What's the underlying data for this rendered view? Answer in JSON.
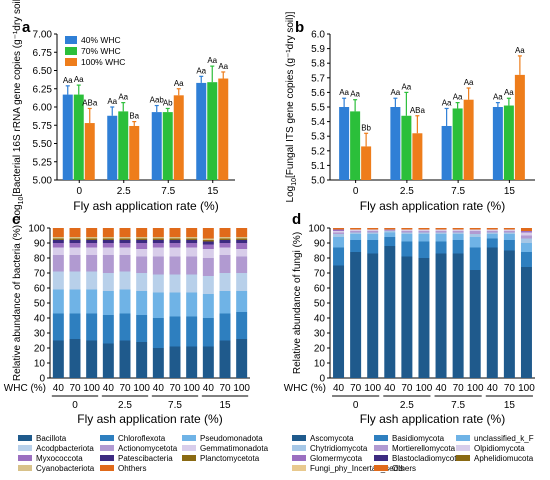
{
  "chart_data": [
    {
      "panel": "a",
      "type": "bar",
      "categories": [
        "0",
        "2.5",
        "7.5",
        "15"
      ],
      "series": [
        {
          "name": "40% WHC",
          "values": [
            6.17,
            5.88,
            5.93,
            6.33
          ],
          "errors": [
            0.12,
            0.12,
            0.09,
            0.09
          ],
          "labels": [
            "Aa",
            "Aa",
            "Aab",
            "Aa"
          ]
        },
        {
          "name": "70% WHC",
          "values": [
            6.17,
            5.94,
            5.93,
            6.34
          ],
          "errors": [
            0.13,
            0.12,
            0.05,
            0.22
          ],
          "labels": [
            "Aa",
            "Aa",
            "Ab",
            "Aa"
          ]
        },
        {
          "name": "100% WHC",
          "values": [
            5.78,
            5.74,
            6.16,
            6.39
          ],
          "errors": [
            0.2,
            0.06,
            0.09,
            0.09
          ],
          "labels": [
            "ABa",
            "Ba",
            "Aa",
            "Aa"
          ]
        }
      ],
      "xlabel": "Fly ash application rate (%)",
      "ylabel": "Log10[Bacterial 16S rRNA gene copies (g⁻¹dry soil)]",
      "ylim": [
        5.0,
        7.0
      ],
      "yticks": [
        "5.00",
        "5.25",
        "5.50",
        "5.75",
        "6.00",
        "6.25",
        "6.50",
        "6.75",
        "7.00"
      ],
      "legend": "top-left"
    },
    {
      "panel": "b",
      "type": "bar",
      "categories": [
        "0",
        "2.5",
        "7.5",
        "15"
      ],
      "series": [
        {
          "name": "40% WHC",
          "values": [
            5.5,
            5.5,
            5.37,
            5.5
          ],
          "errors": [
            0.06,
            0.06,
            0.12,
            0.03
          ],
          "labels": [
            "Aa",
            "Aa",
            "Aa",
            "Aa"
          ]
        },
        {
          "name": "70% WHC",
          "values": [
            5.47,
            5.44,
            5.49,
            5.51
          ],
          "errors": [
            0.08,
            0.16,
            0.04,
            0.05
          ],
          "labels": [
            "Aa",
            "Aa",
            "Aa",
            "Aa"
          ]
        },
        {
          "name": "100% WHC",
          "values": [
            5.23,
            5.32,
            5.55,
            5.72
          ],
          "errors": [
            0.09,
            0.12,
            0.08,
            0.13
          ],
          "labels": [
            "Bb",
            "ABa",
            "Aa",
            "Aa"
          ]
        }
      ],
      "xlabel": "Fly ash application rate (%)",
      "ylabel": "Log10[Fungal ITS gene copies (g⁻¹dry soil)]",
      "ylim": [
        5.0,
        6.0
      ],
      "yticks": [
        "5.0",
        "5.1",
        "5.2",
        "5.3",
        "5.4",
        "5.5",
        "5.6",
        "5.7",
        "5.8",
        "5.9",
        "6.0"
      ]
    },
    {
      "panel": "c",
      "type": "stacked-bar",
      "groups": [
        "0",
        "2.5",
        "7.5",
        "15"
      ],
      "categories": [
        "40",
        "70",
        "100",
        "40",
        "70",
        "100",
        "40",
        "70",
        "100",
        "40",
        "70",
        "100"
      ],
      "whc_label": "WHC (%)",
      "xlabel": "Fly ash application rate (%)",
      "ylabel": "Relative abundance of bacteria (%)",
      "ylim": [
        0,
        100
      ],
      "yticks": [
        "0",
        "10",
        "20",
        "30",
        "40",
        "50",
        "60",
        "70",
        "80",
        "90",
        "100"
      ],
      "series": [
        {
          "name": "Bacillota",
          "color": "#1f5a8c",
          "values": [
            25,
            26,
            25,
            23,
            25,
            24,
            20,
            21,
            21,
            21,
            25,
            26
          ]
        },
        {
          "name": "Chloroflexota",
          "color": "#2e7fbf",
          "values": [
            18,
            17,
            18,
            19,
            18,
            18,
            20,
            20,
            20,
            19,
            18,
            18
          ]
        },
        {
          "name": "Pseudomonadota",
          "color": "#6fb3e6",
          "values": [
            16,
            16,
            16,
            16,
            16,
            16,
            17,
            16,
            16,
            16,
            15,
            14
          ]
        },
        {
          "name": "Acodpbacteriota",
          "color": "#b8d0ea",
          "values": [
            12,
            12,
            12,
            12,
            12,
            12,
            12,
            12,
            12,
            12,
            12,
            12
          ]
        },
        {
          "name": "Actionomycetota",
          "color": "#b19ad1",
          "values": [
            11,
            11,
            11,
            12,
            11,
            11,
            12,
            12,
            12,
            12,
            12,
            11
          ]
        },
        {
          "name": "Gemmatimonadota",
          "color": "#d8cdea",
          "values": [
            5,
            5,
            5,
            5,
            5,
            5,
            6,
            6,
            6,
            6,
            5,
            5
          ]
        },
        {
          "name": "Myxococcota",
          "color": "#9b6fc0",
          "values": [
            3,
            3,
            3,
            3,
            3,
            4,
            3,
            3,
            3,
            3,
            3,
            4
          ]
        },
        {
          "name": "Patescibacteria",
          "color": "#3c2a80",
          "values": [
            2,
            2,
            2,
            2,
            2,
            2,
            2,
            2,
            2,
            2,
            2,
            2
          ]
        },
        {
          "name": "Planctomycetota",
          "color": "#8a6a14",
          "values": [
            1,
            1,
            1,
            1,
            1,
            1,
            1,
            1,
            1,
            1,
            1,
            1
          ]
        },
        {
          "name": "Cyanobacteriota",
          "color": "#d8c28a",
          "values": [
            1,
            1,
            1,
            1,
            1,
            1,
            1,
            1,
            1,
            1,
            1,
            1
          ]
        },
        {
          "name": "Ohthers",
          "color": "#e06a1a",
          "values": [
            6,
            6,
            6,
            6,
            6,
            6,
            6,
            6,
            6,
            7,
            6,
            6
          ]
        }
      ]
    },
    {
      "panel": "d",
      "type": "stacked-bar",
      "groups": [
        "0",
        "2.5",
        "7.5",
        "15"
      ],
      "categories": [
        "40",
        "70",
        "100",
        "40",
        "70",
        "100",
        "40",
        "70",
        "100",
        "40",
        "70",
        "100"
      ],
      "whc_label": "WHC (%)",
      "xlabel": "Fly ash application rate (%)",
      "ylabel": "Relative abundance of fungi (%)",
      "ylim": [
        0,
        100
      ],
      "yticks": [
        "0",
        "10",
        "20",
        "30",
        "40",
        "50",
        "60",
        "70",
        "80",
        "90",
        "100"
      ],
      "series": [
        {
          "name": "Ascomycota",
          "color": "#1f5a8c",
          "values": [
            75,
            84,
            83,
            88,
            81,
            80,
            83,
            83,
            72,
            87,
            85,
            74
          ]
        },
        {
          "name": "Basidiomycota",
          "color": "#2e7fbf",
          "values": [
            12,
            8,
            9,
            6,
            10,
            11,
            8,
            9,
            15,
            6,
            7,
            10
          ]
        },
        {
          "name": "unclassified_k_F",
          "color": "#6fb3e6",
          "values": [
            7,
            4,
            4,
            3,
            5,
            5,
            5,
            4,
            7,
            3,
            4,
            6
          ]
        },
        {
          "name": "Chytridiomycota",
          "color": "#a6c7e6",
          "values": [
            2,
            1,
            1,
            1,
            1,
            1,
            1,
            1,
            2,
            1,
            1,
            3
          ]
        },
        {
          "name": "Mortierellomycota",
          "color": "#b19ad1",
          "values": [
            1,
            1,
            1,
            1,
            1,
            1,
            1,
            1,
            2,
            1,
            1,
            2
          ]
        },
        {
          "name": "Olpidiomycota",
          "color": "#d8cdea",
          "values": [
            1,
            1,
            1,
            0,
            1,
            1,
            1,
            1,
            1,
            1,
            1,
            2
          ]
        },
        {
          "name": "Glomermycota",
          "color": "#9b6fc0",
          "values": [
            1,
            0,
            0,
            0,
            0,
            0,
            0,
            0,
            0,
            0,
            0,
            1
          ]
        },
        {
          "name": "Blastocladiomycota",
          "color": "#3c2a80",
          "values": [
            0,
            0,
            0,
            0,
            0,
            0,
            0,
            0,
            0,
            0,
            0,
            0
          ]
        },
        {
          "name": "Aphelidiomucota",
          "color": "#8a6a14",
          "values": [
            0,
            0,
            0,
            0,
            0,
            0,
            0,
            0,
            0,
            0,
            0,
            0
          ]
        },
        {
          "name": "Fungi_phy_Incertae_sedis",
          "color": "#e8c98e",
          "values": [
            0,
            0,
            0,
            0,
            0,
            0,
            0,
            0,
            0,
            0,
            0,
            0
          ]
        },
        {
          "name": "Others",
          "color": "#e06a1a",
          "values": [
            1,
            1,
            1,
            1,
            1,
            1,
            1,
            1,
            1,
            1,
            1,
            2
          ]
        }
      ]
    }
  ],
  "colors": {
    "whc40": "#2f7fd6",
    "whc70": "#2bbf3a",
    "whc100": "#ee7d1b",
    "error": "#555555"
  }
}
